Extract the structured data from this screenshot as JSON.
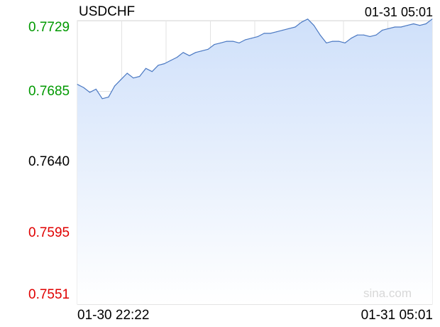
{
  "header": {
    "symbol": "USDCHF",
    "time": "01-31 05:01"
  },
  "watermark": "sina.com",
  "colors": {
    "up": "#009900",
    "down": "#e00000",
    "neutral": "#000000",
    "line": "#4a78c2",
    "fill": "#cfe0fa"
  },
  "chart_data": {
    "type": "area",
    "title": "USDCHF",
    "xlabel": "",
    "ylabel": "",
    "x_tick_labels": [
      "01-30 22:22",
      "01-31 05:01"
    ],
    "y_tick_labels": [
      "0.7729",
      "0.7685",
      "0.7640",
      "0.7595",
      "0.7551"
    ],
    "ylim": [
      0.7551,
      0.7729
    ],
    "reference_price": 0.764,
    "grid": true,
    "series": [
      {
        "values": [
          0.7689,
          0.7687,
          0.7684,
          0.7686,
          0.768,
          0.7681,
          0.7688,
          0.7692,
          0.7696,
          0.7693,
          0.7694,
          0.7699,
          0.7697,
          0.7701,
          0.7702,
          0.7704,
          0.7706,
          0.7709,
          0.7707,
          0.7709,
          0.771,
          0.7711,
          0.7714,
          0.7715,
          0.7716,
          0.7716,
          0.7715,
          0.7717,
          0.7718,
          0.7719,
          0.7721,
          0.7721,
          0.7722,
          0.7723,
          0.7724,
          0.7725,
          0.7728,
          0.773,
          0.7726,
          0.772,
          0.7715,
          0.7716,
          0.7716,
          0.7715,
          0.7718,
          0.772,
          0.772,
          0.7719,
          0.772,
          0.7723,
          0.7724,
          0.7725,
          0.7725,
          0.7726,
          0.7727,
          0.7726,
          0.7727,
          0.773
        ]
      }
    ]
  }
}
